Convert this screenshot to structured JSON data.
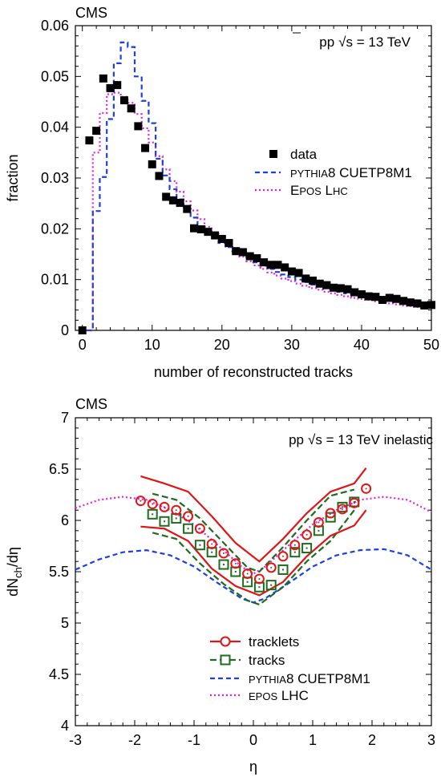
{
  "colors": {
    "data": "#000000",
    "pythia": "#1c3fe0",
    "epos": "#e020e0",
    "tracklets": "#e01515",
    "tracks": "#1f6b1f"
  },
  "chart_data": [
    {
      "type": "scatter",
      "label": "CMS",
      "energy_prefix": "pp",
      "energy_text": "s = 13 TeV",
      "xlabel": "number of reconstructed tracks",
      "ylabel": "fraction",
      "xlim": [
        -1,
        50
      ],
      "ylim": [
        0,
        0.06
      ],
      "xticks": [
        "0",
        "10",
        "20",
        "30",
        "40",
        "50"
      ],
      "yticks": [
        "0",
        "0.01",
        "0.02",
        "0.03",
        "0.04",
        "0.05",
        "0.06"
      ],
      "legend_position": "center-right",
      "series": [
        {
          "name": "data",
          "style": "squares",
          "x": [
            0,
            1,
            2,
            3,
            4,
            5,
            6,
            7,
            8,
            9,
            10,
            11,
            12,
            13,
            14,
            15,
            16,
            17,
            18,
            19,
            20,
            21,
            22,
            23,
            24,
            25,
            26,
            27,
            28,
            29,
            30,
            31,
            32,
            33,
            34,
            35,
            36,
            37,
            38,
            39,
            40,
            41,
            42,
            43,
            44,
            45,
            46,
            47,
            48,
            49,
            50
          ],
          "y": [
            0,
            0.0374,
            0.0393,
            0.0496,
            0.0477,
            0.0483,
            0.0453,
            0.0437,
            0.0402,
            0.0359,
            0.0327,
            0.0304,
            0.0263,
            0.0256,
            0.0251,
            0.0239,
            0.0201,
            0.0199,
            0.0194,
            0.0187,
            0.018,
            0.0172,
            0.0156,
            0.0154,
            0.0146,
            0.0142,
            0.0134,
            0.0129,
            0.0129,
            0.0124,
            0.0116,
            0.0113,
            0.0102,
            0.0098,
            0.0092,
            0.0089,
            0.0084,
            0.0083,
            0.0081,
            0.0075,
            0.0071,
            0.0067,
            0.0066,
            0.006,
            0.0064,
            0.0062,
            0.0058,
            0.0055,
            0.0053,
            0.0049,
            0.005
          ]
        },
        {
          "name": "PYTHIA8 CUETP8M1",
          "name_parts": [
            "PYTHIA",
            "8 CUETP8M1"
          ],
          "style": "dashed",
          "x": [
            -0.5,
            0.5,
            1.5,
            2.5,
            3.5,
            4.5,
            5.5,
            6.5,
            7.5,
            8.5,
            9.5,
            10.5,
            11.5,
            12.5,
            13.5,
            14.5,
            15.5,
            16.5,
            17.5,
            18.5,
            19.5,
            20.5,
            21.5,
            22.5,
            23.5,
            24.5,
            25.5,
            26.5,
            27.5,
            28.5,
            29.5,
            30.5,
            31.5,
            32.5,
            33.5,
            34.5,
            35.5,
            36.5,
            37.5,
            38.5,
            39.5,
            40.5,
            41.5,
            42.5,
            43.5,
            44.5,
            45.5,
            46.5,
            47.5,
            48.5,
            49.5,
            50
          ],
          "y": [
            0,
            0.0,
            0.0235,
            0.0302,
            0.0416,
            0.0526,
            0.0567,
            0.0558,
            0.05,
            0.0452,
            0.0408,
            0.0338,
            0.0305,
            0.0278,
            0.0258,
            0.024,
            0.0222,
            0.0205,
            0.0195,
            0.0183,
            0.0172,
            0.0164,
            0.0156,
            0.0148,
            0.014,
            0.0134,
            0.0127,
            0.0121,
            0.0115,
            0.011,
            0.0105,
            0.01,
            0.0095,
            0.009,
            0.0087,
            0.0083,
            0.008,
            0.0076,
            0.0073,
            0.007,
            0.0068,
            0.0065,
            0.0062,
            0.006,
            0.0058,
            0.0056,
            0.0053,
            0.0051,
            0.0049,
            0.0047,
            0.0045,
            0.0045
          ]
        },
        {
          "name": "EPOS LHC",
          "name_parts": [
            "E",
            "POS",
            " L",
            "HC"
          ],
          "style": "dotted",
          "x": [
            -0.5,
            0.5,
            1.5,
            2.5,
            3.5,
            4.5,
            5.5,
            6.5,
            7.5,
            8.5,
            9.5,
            10.5,
            11.5,
            12.5,
            13.5,
            14.5,
            15.5,
            16.5,
            17.5,
            18.5,
            19.5,
            20.5,
            21.5,
            22.5,
            23.5,
            24.5,
            25.5,
            26.5,
            27.5,
            28.5,
            29.5,
            30.5,
            31.5,
            32.5,
            33.5,
            34.5,
            35.5,
            36.5,
            37.5,
            38.5,
            39.5,
            40.5,
            41.5,
            42.5,
            43.5,
            44.5,
            45.5,
            46.5,
            47.5,
            48.5,
            49.5,
            50
          ],
          "y": [
            0,
            0.0,
            0.035,
            0.0428,
            0.0465,
            0.0468,
            0.046,
            0.0448,
            0.0426,
            0.0398,
            0.037,
            0.0343,
            0.0317,
            0.0294,
            0.0273,
            0.0254,
            0.0236,
            0.0219,
            0.0204,
            0.019,
            0.0177,
            0.0165,
            0.0155,
            0.0145,
            0.0136,
            0.0128,
            0.0121,
            0.0114,
            0.0108,
            0.0102,
            0.0097,
            0.0092,
            0.0088,
            0.0083,
            0.008,
            0.0076,
            0.0073,
            0.007,
            0.0067,
            0.0064,
            0.0062,
            0.006,
            0.0057,
            0.0055,
            0.0053,
            0.0051,
            0.0049,
            0.0048,
            0.0046,
            0.0045,
            0.0044,
            0.0044
          ]
        }
      ]
    },
    {
      "type": "line",
      "label": "CMS",
      "energy_prefix": "pp",
      "energy_text": "s = 13 TeV inelastic",
      "xlabel": "η",
      "ylabel_main": "dN",
      "ylabel_sub": "ch",
      "ylabel_tail": "/dη",
      "xlim": [
        -3,
        3
      ],
      "ylim": [
        4,
        7
      ],
      "xticks": [
        "-3",
        "-2",
        "-1",
        "0",
        "1",
        "2",
        "3"
      ],
      "yticks": [
        "4",
        "4.5",
        "5",
        "5.5",
        "6",
        "6.5",
        "7"
      ],
      "legend_position": "bottom-right",
      "series": [
        {
          "name": "tracklets",
          "style": "circles",
          "x": [
            -1.9,
            -1.7,
            -1.5,
            -1.3,
            -1.1,
            -0.9,
            -0.7,
            -0.5,
            -0.3,
            -0.1,
            0.1,
            0.3,
            0.5,
            0.7,
            0.9,
            1.1,
            1.3,
            1.5,
            1.7,
            1.9
          ],
          "y": [
            6.19,
            6.16,
            6.13,
            6.1,
            6.04,
            5.92,
            5.77,
            5.68,
            5.58,
            5.48,
            5.43,
            5.54,
            5.65,
            5.76,
            5.86,
            5.98,
            6.07,
            6.11,
            6.17,
            6.31
          ],
          "band_x": [
            -1.9,
            -1.5,
            -1.1,
            -0.7,
            -0.3,
            0.1,
            0.5,
            0.9,
            1.3,
            1.7,
            1.9
          ],
          "band_upper": [
            6.43,
            6.36,
            6.28,
            6.04,
            5.78,
            5.6,
            5.82,
            6.07,
            6.28,
            6.36,
            6.51
          ],
          "band_lower": [
            5.94,
            5.92,
            5.8,
            5.53,
            5.36,
            5.27,
            5.4,
            5.65,
            5.85,
            5.95,
            6.1
          ]
        },
        {
          "name": "tracks",
          "style": "squares",
          "x": [
            -1.7,
            -1.5,
            -1.3,
            -1.1,
            -0.9,
            -0.7,
            -0.5,
            -0.3,
            -0.1,
            0.1,
            0.3,
            0.5,
            0.7,
            0.9,
            1.1,
            1.3,
            1.5,
            1.7
          ],
          "y": [
            6.06,
            5.99,
            6.02,
            5.92,
            5.76,
            5.69,
            5.57,
            5.5,
            5.4,
            5.35,
            5.37,
            5.52,
            5.69,
            5.73,
            5.9,
            6.03,
            6.13,
            6.18
          ],
          "band_x": [
            -1.7,
            -1.3,
            -0.9,
            -0.5,
            -0.1,
            0.1,
            0.5,
            0.9,
            1.3,
            1.7
          ],
          "band_upper": [
            6.26,
            6.2,
            6.02,
            5.78,
            5.54,
            5.5,
            5.74,
            6.0,
            6.24,
            6.3
          ],
          "band_lower": [
            5.88,
            5.82,
            5.58,
            5.38,
            5.22,
            5.18,
            5.35,
            5.6,
            5.8,
            6.1
          ]
        },
        {
          "name": "PYTHIA8 CUETP8M1",
          "name_parts": [
            "PYTHIA",
            "8 CUETP8M1"
          ],
          "style": "dashed",
          "x": [
            -3,
            -2.6,
            -2.2,
            -1.8,
            -1.4,
            -1.0,
            -0.6,
            -0.2,
            0.0,
            0.2,
            0.6,
            1.0,
            1.4,
            1.8,
            2.2,
            2.6,
            3
          ],
          "y": [
            5.52,
            5.62,
            5.69,
            5.71,
            5.66,
            5.55,
            5.39,
            5.24,
            5.2,
            5.24,
            5.39,
            5.55,
            5.66,
            5.71,
            5.72,
            5.66,
            5.52
          ]
        },
        {
          "name": "EPOS LHC",
          "name_parts": [
            "EPOS",
            " LHC"
          ],
          "style": "dotted",
          "x": [
            -3,
            -2.6,
            -2.2,
            -1.8,
            -1.4,
            -1.0,
            -0.6,
            -0.2,
            0.0,
            0.2,
            0.6,
            1.0,
            1.4,
            1.8,
            2.2,
            2.6,
            3
          ],
          "y": [
            6.12,
            6.2,
            6.23,
            6.2,
            6.1,
            5.96,
            5.76,
            5.55,
            5.48,
            5.55,
            5.76,
            5.96,
            6.1,
            6.2,
            6.23,
            6.2,
            6.08
          ]
        }
      ]
    }
  ]
}
